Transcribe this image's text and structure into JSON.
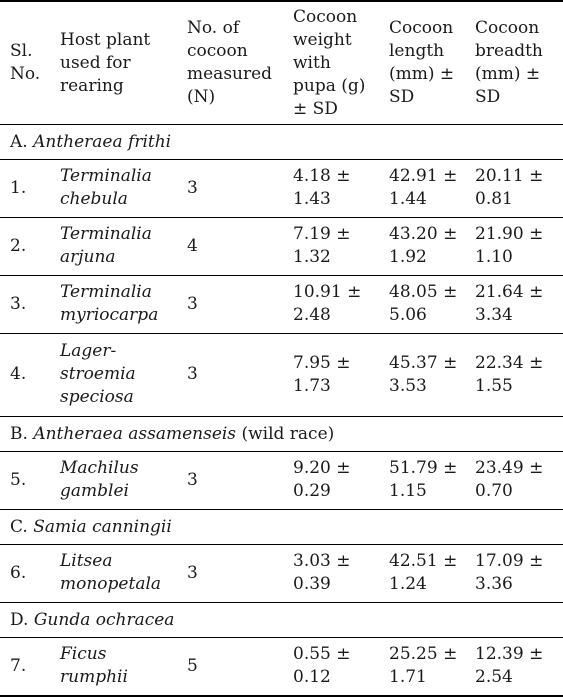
{
  "headers": {
    "sl_no": "Sl. No.",
    "host_plant": "Host plant used for rearing",
    "no_cocoon": "No. of cocoon measured (N)",
    "weight": "Cocoon weight with pupa (g) ± SD",
    "length": "Cocoon length (mm) ± SD",
    "breadth": "Cocoon breadth (mm) ± SD"
  },
  "groups": [
    {
      "prefix": "A.",
      "species": "Antheraea frithi",
      "suffix": "",
      "rows": [
        {
          "sl": "1.",
          "host": "Terminalia chebula",
          "n": "3",
          "weight": "4.18 ± 1.43",
          "length": "42.91 ± 1.44",
          "breadth": "20.11 ± 0.81"
        },
        {
          "sl": "2.",
          "host": "Terminalia arjuna",
          "n": "4",
          "weight": "7.19 ± 1.32",
          "length": "43.20 ± 1.92",
          "breadth": "21.90 ± 1.10"
        },
        {
          "sl": "3.",
          "host": "Terminalia myriocarpa",
          "n": "3",
          "weight": "10.91 ± 2.48",
          "length": "48.05 ± 5.06",
          "breadth": "21.64 ± 3.34"
        },
        {
          "sl": "4.",
          "host": "Lager-stroemia speciosa",
          "n": "3",
          "weight": "7.95 ± 1.73",
          "length": "45.37 ± 3.53",
          "breadth": "22.34 ± 1.55"
        }
      ]
    },
    {
      "prefix": "B.",
      "species": "Antheraea assamenseis",
      "suffix": " (wild race)",
      "rows": [
        {
          "sl": "5.",
          "host": "Machilus gamblei",
          "n": "3",
          "weight": "9.20 ± 0.29",
          "length": "51.79 ± 1.15",
          "breadth": "23.49 ± 0.70"
        }
      ]
    },
    {
      "prefix": "C.",
      "species": "Samia canningii",
      "suffix": "",
      "rows": [
        {
          "sl": "6.",
          "host": "Litsea monopetala",
          "n": "3",
          "weight": "3.03 ± 0.39",
          "length": "42.51 ± 1.24",
          "breadth": "17.09 ± 3.36"
        }
      ]
    },
    {
      "prefix": "D.",
      "species": "Gunda ochracea",
      "suffix": "",
      "rows": [
        {
          "sl": "7.",
          "host": "Ficus rumphii",
          "n": "5",
          "weight": "0.55 ± 0.12",
          "length": "25.25 ± 1.71",
          "breadth": "12.39 ± 2.54"
        }
      ]
    }
  ]
}
